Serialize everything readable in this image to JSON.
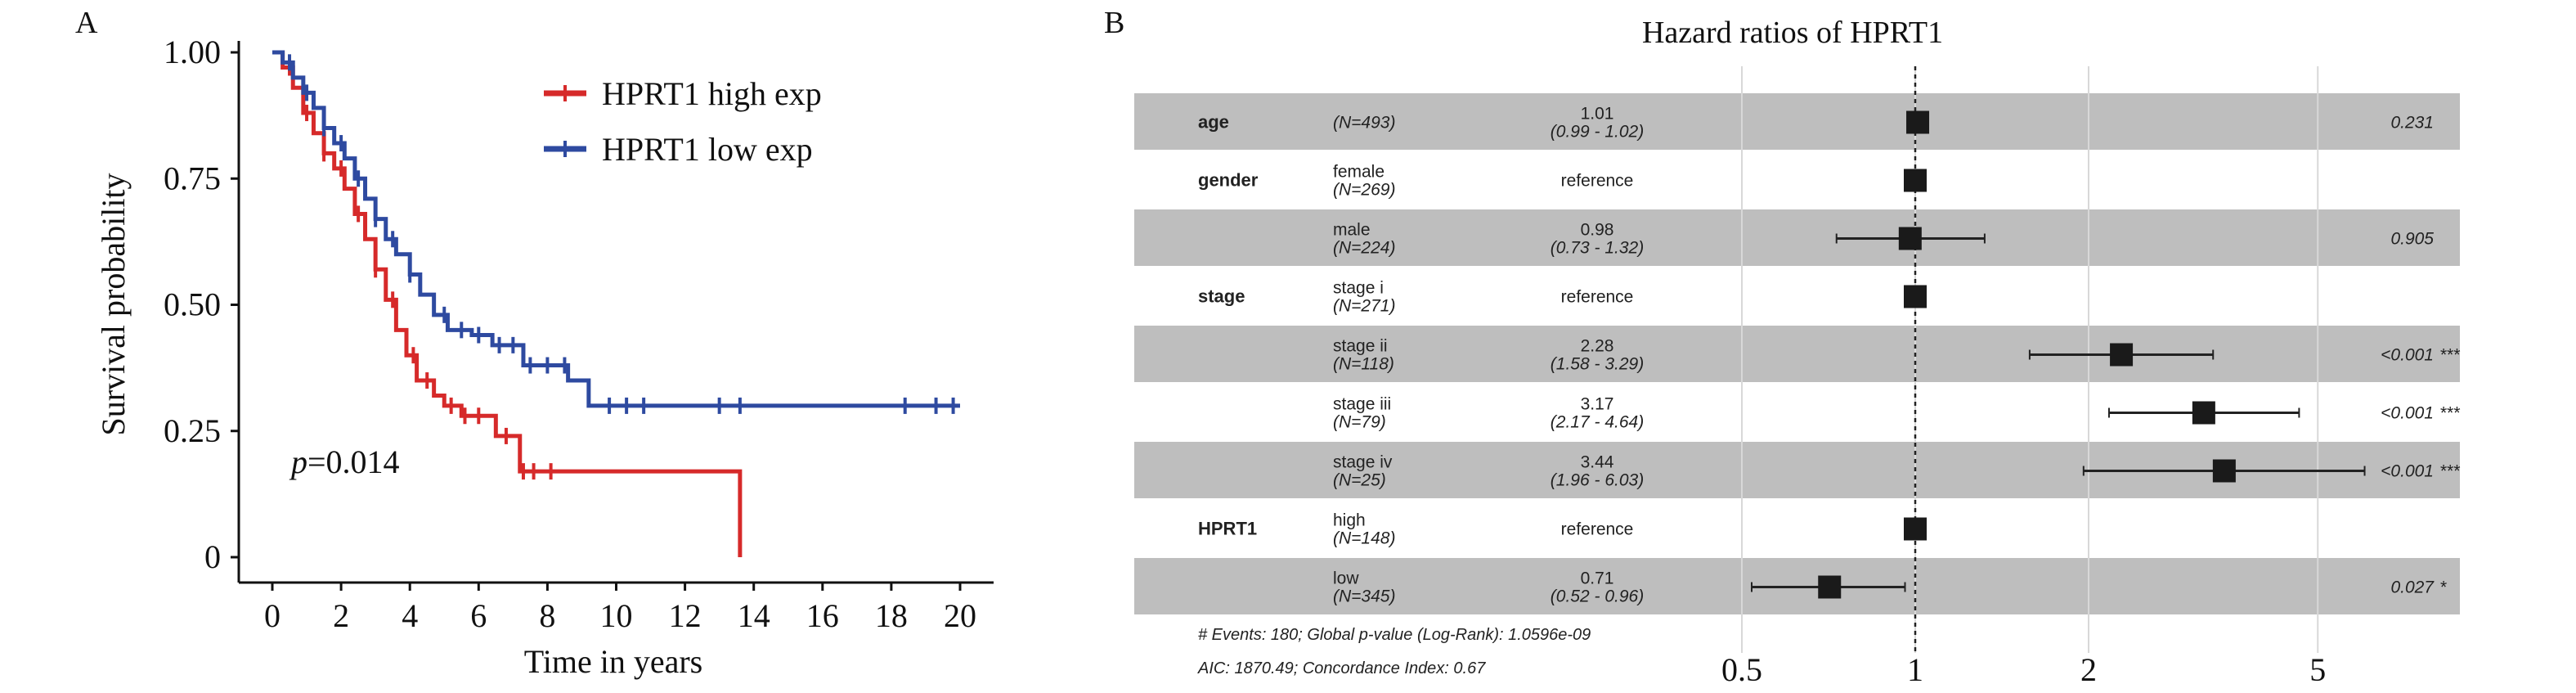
{
  "chart_data": [
    {
      "type": "line",
      "panel_label": "A",
      "title": "",
      "xlabel": "Time in years",
      "ylabel": "Survival probability",
      "xlim": [
        0,
        20
      ],
      "ylim": [
        0,
        1
      ],
      "x_ticks": [
        "0",
        "2",
        "4",
        "6",
        "8",
        "10",
        "12",
        "14",
        "16",
        "18",
        "20"
      ],
      "y_ticks": [
        "0",
        "0.25",
        "0.50",
        "0.75",
        "1.00"
      ],
      "annotation": {
        "italic": "p",
        "text": "=0.014"
      },
      "legend_position": "top-right",
      "series": [
        {
          "name": "HPRT1 high exp",
          "color": "#d62a2a",
          "steps": [
            [
              0,
              1
            ],
            [
              0.3,
              0.97
            ],
            [
              0.6,
              0.93
            ],
            [
              0.9,
              0.88
            ],
            [
              1.2,
              0.84
            ],
            [
              1.5,
              0.8
            ],
            [
              1.8,
              0.77
            ],
            [
              2.1,
              0.73
            ],
            [
              2.4,
              0.68
            ],
            [
              2.7,
              0.63
            ],
            [
              3.0,
              0.57
            ],
            [
              3.3,
              0.51
            ],
            [
              3.6,
              0.45
            ],
            [
              3.9,
              0.4
            ],
            [
              4.2,
              0.35
            ],
            [
              4.7,
              0.32
            ],
            [
              5.0,
              0.3
            ],
            [
              5.5,
              0.28
            ],
            [
              6.5,
              0.24
            ],
            [
              7.2,
              0.17
            ],
            [
              13.6,
              0
            ]
          ],
          "end": 13.6,
          "censored": [
            0.5,
            1,
            1.5,
            2,
            2.5,
            3,
            3.5,
            4.1,
            4.5,
            5.2,
            5.6,
            6,
            6.8,
            7.3,
            7.6,
            8.1
          ]
        },
        {
          "name": "HPRT1 low exp",
          "color": "#2e4aa0",
          "steps": [
            [
              0,
              1
            ],
            [
              0.3,
              0.98
            ],
            [
              0.6,
              0.95
            ],
            [
              0.9,
              0.92
            ],
            [
              1.2,
              0.89
            ],
            [
              1.5,
              0.85
            ],
            [
              1.8,
              0.82
            ],
            [
              2.1,
              0.79
            ],
            [
              2.4,
              0.75
            ],
            [
              2.7,
              0.71
            ],
            [
              3.0,
              0.67
            ],
            [
              3.3,
              0.63
            ],
            [
              3.6,
              0.6
            ],
            [
              4.0,
              0.56
            ],
            [
              4.3,
              0.52
            ],
            [
              4.7,
              0.48
            ],
            [
              5.1,
              0.45
            ],
            [
              5.8,
              0.44
            ],
            [
              6.4,
              0.42
            ],
            [
              7.3,
              0.38
            ],
            [
              8.6,
              0.35
            ],
            [
              9.2,
              0.3
            ]
          ],
          "end": 20,
          "censored": [
            0.5,
            1,
            1.5,
            2,
            2.5,
            3,
            3.5,
            4,
            5,
            5.5,
            6,
            6.6,
            7,
            7.5,
            8,
            8.5,
            9.8,
            10.3,
            10.8,
            13,
            13.6,
            18.4,
            19.3,
            19.8
          ]
        }
      ]
    },
    {
      "type": "forest",
      "panel_label": "B",
      "title": "Hazard ratios of HPRT1",
      "x_scale": "log",
      "x_ticks": [
        {
          "value": 0.5,
          "label": "0.5"
        },
        {
          "value": 1,
          "label": "1"
        },
        {
          "value": 2,
          "label": "2"
        },
        {
          "value": 5,
          "label": "5"
        }
      ],
      "reference_line": 1,
      "rows": [
        {
          "variable": "age",
          "level": "",
          "n": "(N=493)",
          "hr_text": "1.01",
          "ci_text": "(0.99 - 1.02)",
          "hr": 1.01,
          "lo": 0.99,
          "hi": 1.02,
          "p": "0.231",
          "stars": "",
          "shaded": true
        },
        {
          "variable": "gender",
          "level": "female",
          "n": "(N=269)",
          "hr_text": "reference",
          "ci_text": "",
          "hr": 1,
          "lo": null,
          "hi": null,
          "p": "",
          "stars": "",
          "shaded": false
        },
        {
          "variable": "",
          "level": "male",
          "n": "(N=224)",
          "hr_text": "0.98",
          "ci_text": "(0.73 - 1.32)",
          "hr": 0.98,
          "lo": 0.73,
          "hi": 1.32,
          "p": "0.905",
          "stars": "",
          "shaded": true
        },
        {
          "variable": "stage",
          "level": "stage i",
          "n": "(N=271)",
          "hr_text": "reference",
          "ci_text": "",
          "hr": 1,
          "lo": null,
          "hi": null,
          "p": "",
          "stars": "",
          "shaded": false
        },
        {
          "variable": "",
          "level": "stage ii",
          "n": "(N=118)",
          "hr_text": "2.28",
          "ci_text": "(1.58 - 3.29)",
          "hr": 2.28,
          "lo": 1.58,
          "hi": 3.29,
          "p": "<0.001",
          "stars": "***",
          "shaded": true
        },
        {
          "variable": "",
          "level": "stage iii",
          "n": "(N=79)",
          "hr_text": "3.17",
          "ci_text": "(2.17 - 4.64)",
          "hr": 3.17,
          "lo": 2.17,
          "hi": 4.64,
          "p": "<0.001",
          "stars": "***",
          "shaded": false
        },
        {
          "variable": "",
          "level": "stage iv",
          "n": "(N=25)",
          "hr_text": "3.44",
          "ci_text": "(1.96 - 6.03)",
          "hr": 3.44,
          "lo": 1.96,
          "hi": 6.03,
          "p": "<0.001",
          "stars": "***",
          "shaded": true
        },
        {
          "variable": "HPRT1",
          "level": "high",
          "n": "(N=148)",
          "hr_text": "reference",
          "ci_text": "",
          "hr": 1,
          "lo": null,
          "hi": null,
          "p": "",
          "stars": "",
          "shaded": false
        },
        {
          "variable": "",
          "level": "low",
          "n": "(N=345)",
          "hr_text": "0.71",
          "ci_text": "(0.52 - 0.96)",
          "hr": 0.71,
          "lo": 0.52,
          "hi": 0.96,
          "p": "0.027",
          "stars": "*",
          "shaded": true
        }
      ],
      "footnotes": [
        "# Events: 180; Global p-value (Log-Rank): 1.0596e-09",
        "AIC: 1870.49; Concordance Index: 0.67"
      ],
      "band_color": "#bebebe"
    }
  ]
}
